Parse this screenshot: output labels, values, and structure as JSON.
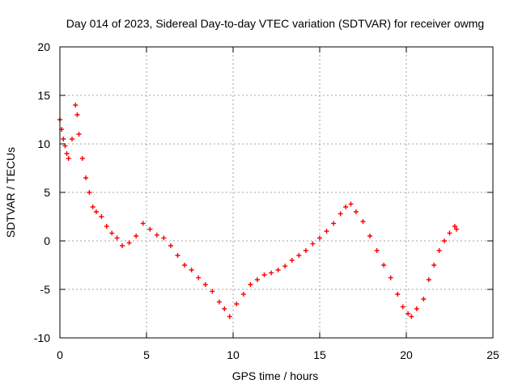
{
  "chart_data": {
    "type": "scatter",
    "title": "Day 014 of 2023, Sidereal Day-to-day VTEC variation (SDTVAR) for receiver owmg",
    "xlabel": "GPS time / hours",
    "ylabel": "SDTVAR / TECUs",
    "xlim": [
      0,
      25
    ],
    "ylim": [
      -10,
      20
    ],
    "xticks": [
      0,
      5,
      10,
      15,
      20,
      25
    ],
    "yticks": [
      -10,
      -5,
      0,
      5,
      10,
      15,
      20
    ],
    "grid": true,
    "marker": "+",
    "color": "#ff0000",
    "series": [
      {
        "name": "SDTVAR",
        "x": [
          0.0,
          0.1,
          0.2,
          0.3,
          0.4,
          0.5,
          0.7,
          0.9,
          1.0,
          1.1,
          1.3,
          1.5,
          1.7,
          1.9,
          2.1,
          2.4,
          2.7,
          3.0,
          3.3,
          3.6,
          4.0,
          4.4,
          4.8,
          5.2,
          5.6,
          6.0,
          6.4,
          6.8,
          7.2,
          7.6,
          8.0,
          8.4,
          8.8,
          9.2,
          9.5,
          9.8,
          10.2,
          10.6,
          11.0,
          11.4,
          11.8,
          12.2,
          12.6,
          13.0,
          13.4,
          13.8,
          14.2,
          14.6,
          15.0,
          15.4,
          15.8,
          16.2,
          16.5,
          16.8,
          17.1,
          17.5,
          17.9,
          18.3,
          18.7,
          19.1,
          19.5,
          19.8,
          20.1,
          20.3,
          20.6,
          21.0,
          21.3,
          21.6,
          21.9,
          22.2,
          22.5,
          22.8,
          22.9
        ],
        "y": [
          12.5,
          11.5,
          10.5,
          9.8,
          9.0,
          8.5,
          10.5,
          14.0,
          13.0,
          11.0,
          8.5,
          6.5,
          5.0,
          3.5,
          3.0,
          2.5,
          1.5,
          0.8,
          0.3,
          -0.5,
          -0.2,
          0.5,
          1.8,
          1.2,
          0.6,
          0.3,
          -0.5,
          -1.5,
          -2.5,
          -3.0,
          -3.8,
          -4.5,
          -5.2,
          -6.3,
          -7.0,
          -7.8,
          -6.5,
          -5.5,
          -4.5,
          -4.0,
          -3.5,
          -3.3,
          -3.0,
          -2.6,
          -2.0,
          -1.5,
          -1.0,
          -0.3,
          0.3,
          1.0,
          1.8,
          2.8,
          3.5,
          3.8,
          3.0,
          2.0,
          0.5,
          -1.0,
          -2.5,
          -3.8,
          -5.5,
          -6.8,
          -7.5,
          -7.8,
          -7.0,
          -6.0,
          -4.0,
          -2.5,
          -1.0,
          0.0,
          0.8,
          1.5,
          1.2
        ]
      }
    ]
  }
}
